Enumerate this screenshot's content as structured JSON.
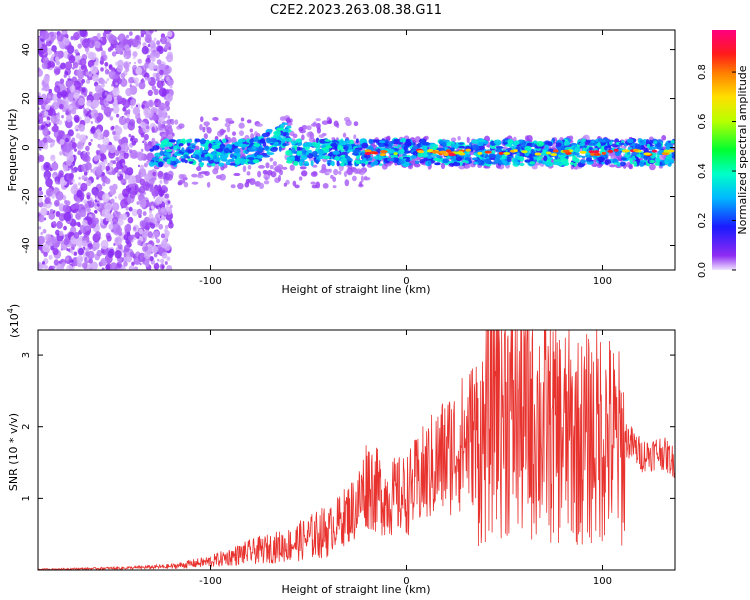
{
  "title": "C2E2.2023.263.08.38.G11",
  "chart_data": [
    {
      "type": "heatmap",
      "xlabel": "Height of straight line (km)",
      "ylabel": "Frequency (Hz)",
      "xlim": [
        -188,
        137
      ],
      "ylim": [
        -50,
        48
      ],
      "xticks": [
        -100,
        0,
        100
      ],
      "yticks": [
        -40,
        -20,
        0,
        20,
        40
      ],
      "colorbar": {
        "label": "Normalized spectral amplitude",
        "range": [
          0,
          0.97
        ],
        "ticks": [
          0.0,
          0.2,
          0.4,
          0.6,
          0.8
        ]
      },
      "features": [
        {
          "region": "broadband noise",
          "x_range": [
            -188,
            -120
          ],
          "freq_range": [
            -50,
            48
          ]
        },
        {
          "region": "central band",
          "x_range": [
            -130,
            137
          ],
          "center_freq": -2,
          "half_width_hz": 5,
          "typical_amplitude": 0.3
        },
        {
          "region": "drifting component",
          "x_range": [
            -80,
            -60
          ],
          "freq_range": [
            2,
            8
          ]
        }
      ]
    },
    {
      "type": "line",
      "xlabel": "Height of straight line (km)",
      "ylabel": "SNR (10 * v/v)",
      "y_multiplier": "(x10",
      "y_exponent": "4",
      "xlim": [
        -188,
        137
      ],
      "ylim": [
        0,
        3.35
      ],
      "xticks": [
        -100,
        0,
        100
      ],
      "yticks": [
        1,
        2,
        3
      ],
      "color": "#e8322e",
      "series": [
        {
          "x": [
            -188,
            -160,
            -140,
            -120,
            -100,
            -80,
            -60,
            -40,
            -25,
            -20,
            -15,
            -10,
            0,
            10,
            20,
            30,
            40,
            45,
            50,
            60,
            70,
            80,
            90,
            100,
            110,
            115,
            120,
            130,
            137
          ],
          "y": [
            0.01,
            0.02,
            0.03,
            0.05,
            0.12,
            0.25,
            0.35,
            0.55,
            0.9,
            1.25,
            1.1,
            1.0,
            1.05,
            1.35,
            1.6,
            1.8,
            2.1,
            3.35,
            2.6,
            2.45,
            2.3,
            2.15,
            2.05,
            2.2,
            1.9,
            1.75,
            1.6,
            1.65,
            1.5
          ]
        }
      ]
    }
  ]
}
